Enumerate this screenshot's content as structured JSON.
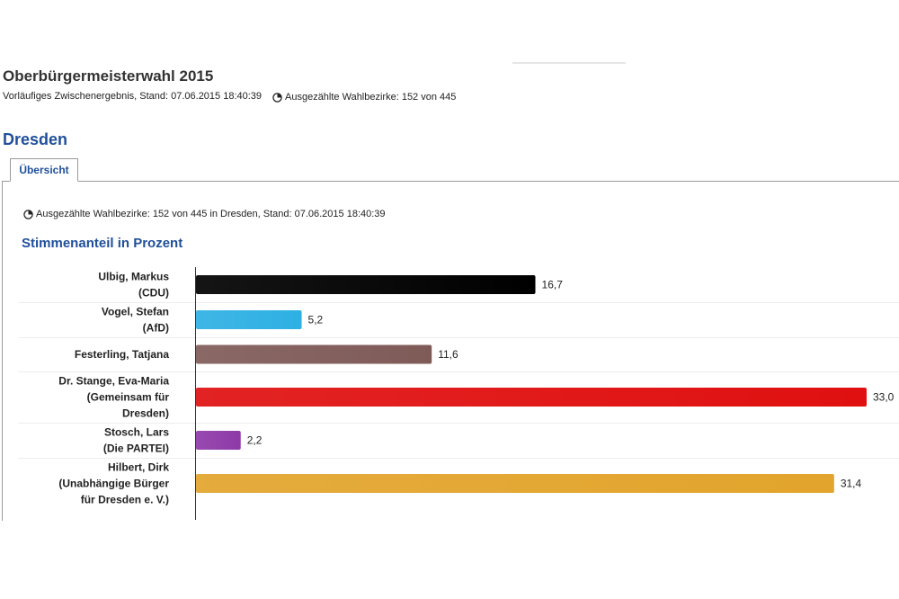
{
  "header": {
    "title": "Oberbürgermeisterwahl 2015",
    "subtitle": "Vorläufiges Zwischenergebnis, Stand: 07.06.2015 18:40:39",
    "counted_districts": "Ausgezählte Wahlbezirke: 152 von 445"
  },
  "region": {
    "name": "Dresden"
  },
  "tabs": [
    {
      "label": "Übersicht",
      "active": true
    }
  ],
  "panel": {
    "counted_districts": "Ausgezählte Wahlbezirke: 152 von 445 in Dresden, Stand: 07.06.2015 18:40:39"
  },
  "icons": {
    "counted": "pie-chart-icon"
  },
  "chart_data": {
    "type": "bar",
    "orientation": "horizontal",
    "title": "Stimmenanteil in Prozent",
    "categories": [
      [
        "Ulbig, Markus",
        "(CDU)"
      ],
      [
        "Vogel, Stefan",
        "(AfD)"
      ],
      [
        "Festerling, Tatjana"
      ],
      [
        "Dr. Stange, Eva-Maria",
        "(Gemeinsam für",
        "Dresden)"
      ],
      [
        "Stosch, Lars",
        "(Die PARTEI)"
      ],
      [
        "Hilbert, Dirk",
        "(Unabhängige Bürger",
        "für Dresden e. V.)"
      ]
    ],
    "values": [
      16.7,
      5.2,
      11.6,
      33.0,
      2.2,
      31.4
    ],
    "value_labels": [
      "16,7",
      "5,2",
      "11,6",
      "33,0",
      "2,2",
      "31,4"
    ],
    "colors": [
      "#000000",
      "#2eb0e3",
      "#7f5b58",
      "#e01010",
      "#8e3aa8",
      "#e2a42c"
    ],
    "xlim": [
      0,
      33.0
    ],
    "grid": false,
    "legend": "none"
  }
}
